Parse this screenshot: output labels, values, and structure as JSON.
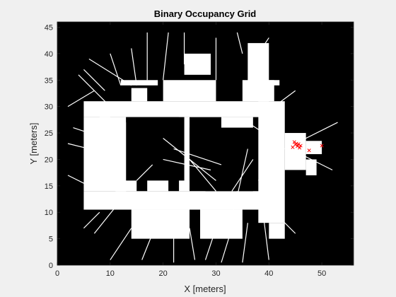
{
  "chart_data": {
    "type": "heatmap",
    "title": "Binary Occupancy Grid",
    "xlabel": "X [meters]",
    "ylabel": "Y [meters]",
    "xlim": [
      0,
      56
    ],
    "ylim": [
      0,
      46
    ],
    "x_ticks": [
      0,
      10,
      20,
      30,
      40,
      50
    ],
    "y_ticks": [
      0,
      5,
      10,
      15,
      20,
      25,
      30,
      35,
      40,
      45
    ],
    "colors": {
      "occupied": "#000000",
      "free": "#ffffff",
      "marker": "#ff0000"
    },
    "free_regions": [
      [
        5,
        28,
        40,
        31
      ],
      [
        38,
        8,
        43,
        31
      ],
      [
        5,
        10.5,
        40,
        14
      ],
      [
        5,
        14,
        13,
        28
      ],
      [
        11,
        14,
        15,
        27
      ],
      [
        17,
        14,
        21,
        27
      ],
      [
        23,
        14,
        25,
        28
      ],
      [
        20,
        31,
        30,
        35
      ],
      [
        14,
        31,
        17,
        33.5
      ],
      [
        35,
        31,
        41,
        35
      ],
      [
        39,
        35,
        42,
        34
      ],
      [
        36,
        34,
        40,
        42
      ],
      [
        31,
        26,
        37,
        28
      ],
      [
        24,
        36,
        29,
        40
      ],
      [
        8,
        25,
        10,
        28
      ],
      [
        14,
        5,
        25,
        10.5
      ],
      [
        27,
        5,
        35,
        10.5
      ],
      [
        12,
        34,
        19,
        35
      ],
      [
        43,
        18,
        47,
        25
      ],
      [
        47,
        21,
        50,
        23.5
      ],
      [
        40,
        5,
        43,
        8
      ],
      [
        47,
        17,
        49,
        20
      ]
    ],
    "occupied_regions": [
      [
        13,
        16,
        24,
        28
      ],
      [
        25,
        16,
        28,
        26
      ],
      [
        28,
        14,
        37,
        26
      ],
      [
        15.5,
        15,
        16.5,
        27
      ],
      [
        21.5,
        15,
        22.5,
        27
      ]
    ],
    "rays": [
      [
        7,
        33,
        2,
        30
      ],
      [
        9,
        33,
        5,
        37
      ],
      [
        10,
        30,
        4,
        36
      ],
      [
        12,
        34,
        10,
        40
      ],
      [
        15,
        34,
        14,
        41
      ],
      [
        17,
        35,
        17,
        44
      ],
      [
        20,
        35,
        21,
        44
      ],
      [
        24,
        38,
        24,
        44
      ],
      [
        30,
        35,
        30,
        43
      ],
      [
        35,
        40,
        34,
        44
      ],
      [
        38,
        40,
        40,
        43
      ],
      [
        41,
        30,
        45,
        33
      ],
      [
        43,
        22,
        53,
        27
      ],
      [
        44,
        22,
        52,
        18
      ],
      [
        42,
        20,
        38,
        16
      ],
      [
        41,
        10,
        45,
        6
      ],
      [
        39,
        9,
        40,
        1
      ],
      [
        36,
        8,
        35,
        0.5
      ],
      [
        33,
        7,
        31,
        0.5
      ],
      [
        30,
        7,
        28,
        1
      ],
      [
        25,
        7,
        26,
        1
      ],
      [
        22,
        6,
        22,
        0.5
      ],
      [
        18,
        6,
        16,
        1
      ],
      [
        14,
        7,
        10,
        1
      ],
      [
        11,
        11,
        7,
        6
      ],
      [
        8,
        10,
        5,
        7
      ],
      [
        6,
        15,
        2,
        17
      ],
      [
        6,
        22,
        2,
        23
      ],
      [
        6,
        25,
        3,
        26
      ],
      [
        12,
        18,
        9,
        15
      ],
      [
        20,
        24,
        30,
        16
      ],
      [
        22,
        22,
        31,
        19
      ],
      [
        20,
        20,
        29,
        18
      ],
      [
        25,
        20,
        30,
        14
      ],
      [
        18,
        19,
        15,
        16
      ],
      [
        33,
        14,
        37,
        20
      ],
      [
        34,
        13,
        36,
        22
      ],
      [
        39,
        25,
        36,
        27
      ],
      [
        33,
        9,
        34,
        14
      ],
      [
        14,
        34,
        6,
        39
      ]
    ],
    "markers": [
      [
        44.5,
        22.3
      ],
      [
        45.0,
        22.8
      ],
      [
        45.2,
        23.0
      ],
      [
        45.4,
        22.5
      ],
      [
        45.6,
        22.9
      ],
      [
        45.8,
        22.2
      ],
      [
        46.0,
        22.6
      ],
      [
        44.8,
        23.3
      ],
      [
        47.6,
        21.7
      ],
      [
        50.0,
        22.6
      ]
    ]
  }
}
